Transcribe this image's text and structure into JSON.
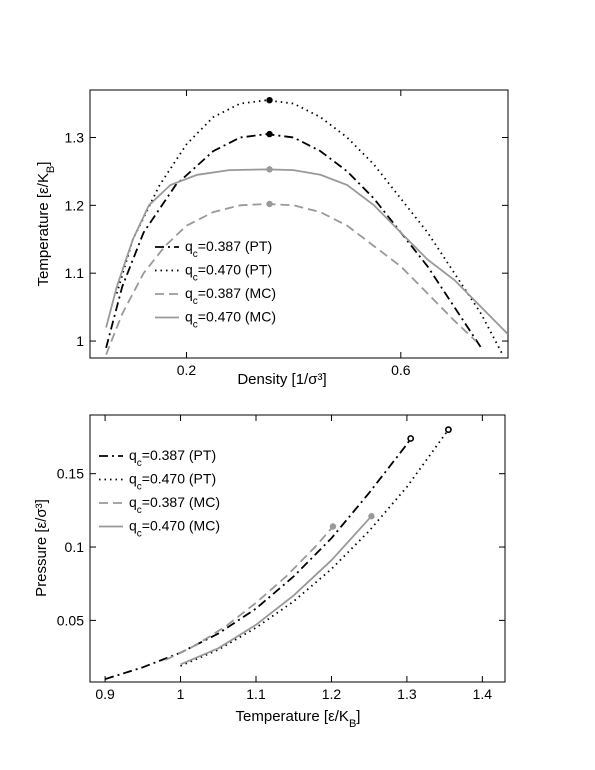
{
  "chart_data": [
    {
      "type": "line",
      "xlabel": "Density [1/σ³]",
      "ylabel": "Temperature [ε/K_B]",
      "xlim": [
        0.02,
        0.8
      ],
      "ylim": [
        0.975,
        1.37
      ],
      "xticks": [
        {
          "v": 0.2,
          "label": "0.2"
        },
        {
          "v": 0.6,
          "label": "0.6"
        }
      ],
      "yticks": [
        {
          "v": 1.0,
          "label": "1"
        },
        {
          "v": 1.1,
          "label": "1.1"
        },
        {
          "v": 1.2,
          "label": "1.2"
        },
        {
          "v": 1.3,
          "label": "1.3"
        }
      ],
      "grid": false,
      "legend": "center",
      "series": [
        {
          "name": "q_c=0.387 (PT)",
          "legend_base": "q",
          "legend_sub": "c",
          "legend_rest": "=0.387 (PT)",
          "color": "#000000",
          "dash": "dashdot",
          "x": [
            0.05,
            0.08,
            0.12,
            0.18,
            0.25,
            0.3,
            0.35,
            0.4,
            0.45,
            0.5,
            0.55,
            0.6,
            0.65,
            0.7,
            0.75
          ],
          "y": [
            0.99,
            1.08,
            1.16,
            1.23,
            1.28,
            1.3,
            1.305,
            1.3,
            1.28,
            1.25,
            1.21,
            1.16,
            1.11,
            1.05,
            0.99
          ],
          "critical": {
            "x": 0.355,
            "y": 1.305,
            "marker": "filled"
          }
        },
        {
          "name": "q_c=0.470 (PT)",
          "legend_base": "q",
          "legend_sub": "c",
          "legend_rest": "=0.470 (PT)",
          "color": "#000000",
          "dash": "dot",
          "x": [
            0.07,
            0.1,
            0.15,
            0.2,
            0.25,
            0.3,
            0.35,
            0.4,
            0.45,
            0.5,
            0.55,
            0.6,
            0.65,
            0.7,
            0.75,
            0.79
          ],
          "y": [
            1.07,
            1.15,
            1.23,
            1.29,
            1.33,
            1.35,
            1.355,
            1.35,
            1.33,
            1.3,
            1.26,
            1.21,
            1.16,
            1.1,
            1.04,
            0.98
          ],
          "critical": {
            "x": 0.355,
            "y": 1.355,
            "marker": "filled"
          }
        },
        {
          "name": "q_c=0.387 (MC)",
          "legend_base": "q",
          "legend_sub": "c",
          "legend_rest": "=0.387 (MC)",
          "color": "#999999",
          "dash": "dash",
          "x": [
            0.05,
            0.08,
            0.12,
            0.16,
            0.2,
            0.25,
            0.3,
            0.35,
            0.4,
            0.45,
            0.5,
            0.55,
            0.6,
            0.65,
            0.7,
            0.74
          ],
          "y": [
            0.98,
            1.04,
            1.1,
            1.14,
            1.17,
            1.19,
            1.2,
            1.202,
            1.2,
            1.19,
            1.17,
            1.14,
            1.11,
            1.07,
            1.03,
            1.0
          ],
          "critical": {
            "x": 0.355,
            "y": 1.202,
            "marker": "filled"
          }
        },
        {
          "name": "q_c=0.470 (MC)",
          "legend_base": "q",
          "legend_sub": "c",
          "legend_rest": "=0.470 (MC)",
          "color": "#999999",
          "dash": "solid",
          "x": [
            0.05,
            0.07,
            0.1,
            0.13,
            0.17,
            0.22,
            0.28,
            0.35,
            0.4,
            0.45,
            0.5,
            0.55,
            0.6,
            0.65,
            0.7,
            0.75,
            0.8
          ],
          "y": [
            1.02,
            1.08,
            1.15,
            1.2,
            1.23,
            1.245,
            1.252,
            1.253,
            1.252,
            1.245,
            1.23,
            1.2,
            1.16,
            1.12,
            1.09,
            1.05,
            1.01
          ],
          "critical": {
            "x": 0.355,
            "y": 1.253,
            "marker": "filled"
          }
        }
      ]
    },
    {
      "type": "line",
      "xlabel": "Temperature [ε/K_B]",
      "ylabel": "Pressure [ε/σ³]",
      "xlim": [
        0.88,
        1.43
      ],
      "ylim": [
        0.008,
        0.19
      ],
      "xticks": [
        {
          "v": 0.9,
          "label": "0.9"
        },
        {
          "v": 1.0,
          "label": "1"
        },
        {
          "v": 1.1,
          "label": "1.1"
        },
        {
          "v": 1.2,
          "label": "1.2"
        },
        {
          "v": 1.3,
          "label": "1.3"
        },
        {
          "v": 1.4,
          "label": "1.4"
        }
      ],
      "yticks": [
        {
          "v": 0.05,
          "label": "0.05"
        },
        {
          "v": 0.1,
          "label": "0.1"
        },
        {
          "v": 0.15,
          "label": "0.15"
        }
      ],
      "grid": false,
      "legend": "top-left",
      "series": [
        {
          "name": "q_c=0.387 (PT)",
          "legend_base": "q",
          "legend_sub": "c",
          "legend_rest": "=0.387 (PT)",
          "color": "#000000",
          "dash": "dashdot",
          "x": [
            0.9,
            0.95,
            1.0,
            1.05,
            1.1,
            1.15,
            1.2,
            1.25,
            1.3,
            1.305
          ],
          "y": [
            0.01,
            0.018,
            0.028,
            0.041,
            0.058,
            0.08,
            0.106,
            0.137,
            0.17,
            0.174
          ],
          "critical": {
            "x": 1.305,
            "y": 0.174,
            "marker": "open"
          }
        },
        {
          "name": "q_c=0.470 (PT)",
          "legend_base": "q",
          "legend_sub": "c",
          "legend_rest": "=0.470 (PT)",
          "color": "#000000",
          "dash": "dot",
          "x": [
            1.0,
            1.05,
            1.1,
            1.15,
            1.2,
            1.25,
            1.3,
            1.355
          ],
          "y": [
            0.019,
            0.03,
            0.045,
            0.063,
            0.085,
            0.111,
            0.141,
            0.18
          ],
          "critical": {
            "x": 1.355,
            "y": 0.18,
            "marker": "open"
          }
        },
        {
          "name": "q_c=0.387 (MC)",
          "legend_base": "q",
          "legend_sub": "c",
          "legend_rest": "=0.387 (MC)",
          "color": "#999999",
          "dash": "dash",
          "x": [
            0.98,
            1.02,
            1.06,
            1.1,
            1.14,
            1.18,
            1.202
          ],
          "y": [
            0.023,
            0.033,
            0.046,
            0.062,
            0.08,
            0.101,
            0.114
          ],
          "critical": {
            "x": 1.202,
            "y": 0.114,
            "marker": "filled"
          }
        },
        {
          "name": "q_c=0.470 (MC)",
          "legend_base": "q",
          "legend_sub": "c",
          "legend_rest": "=0.470 (MC)",
          "color": "#999999",
          "dash": "solid",
          "x": [
            1.0,
            1.05,
            1.1,
            1.15,
            1.2,
            1.253
          ],
          "y": [
            0.02,
            0.031,
            0.047,
            0.067,
            0.091,
            0.121
          ],
          "critical": {
            "x": 1.253,
            "y": 0.121,
            "marker": "filled"
          }
        }
      ]
    }
  ]
}
